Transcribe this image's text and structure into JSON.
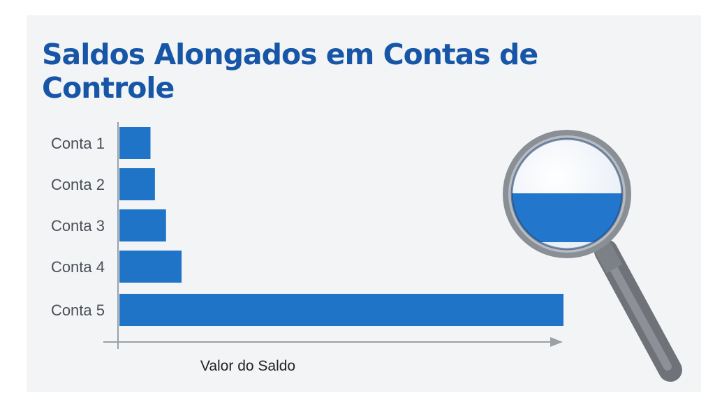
{
  "chart_data": {
    "type": "bar",
    "orientation": "horizontal",
    "title": "Saldos Alongados em Contas de Controle",
    "xlabel": "Valor do Saldo",
    "ylabel": "",
    "categories": [
      "Conta 1",
      "Conta 2",
      "Conta 3",
      "Conta 4",
      "Conta 5"
    ],
    "values": [
      7,
      8,
      10.5,
      14,
      100
    ],
    "xlim": [
      0,
      100
    ],
    "grid": false,
    "legend": "none",
    "bar_color": "#1f74c7",
    "axis_color": "#9aa0a6"
  },
  "decoration": {
    "icon": "magnifying-glass-icon",
    "lens_band_color": "#2277cc",
    "frame_color": "#8a8f96"
  }
}
